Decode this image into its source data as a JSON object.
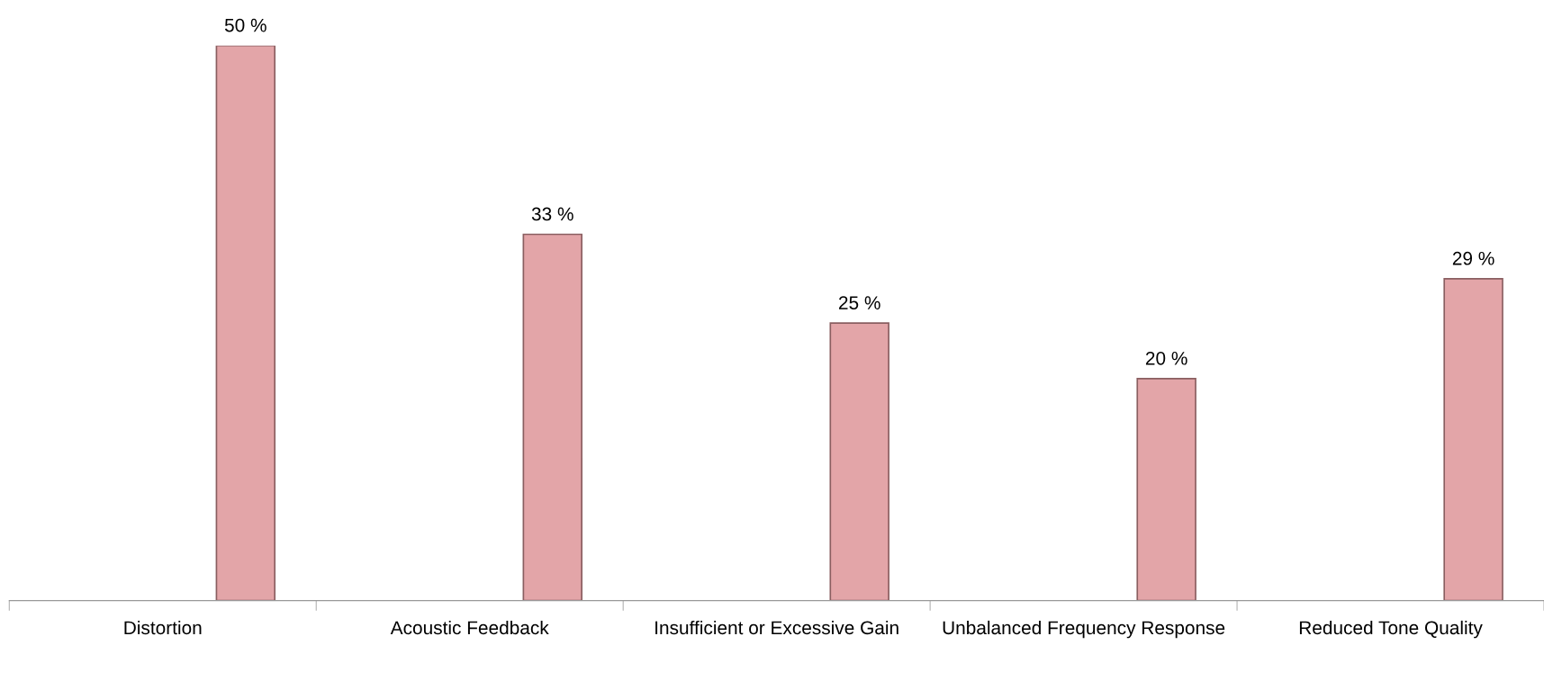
{
  "chart_data": {
    "type": "bar",
    "categories": [
      "Distortion",
      "Acoustic Feedback",
      "Insufficient or Excessive Gain",
      "Unbalanced Frequency Response",
      "Reduced Tone Quality"
    ],
    "values": [
      50,
      33,
      25,
      20,
      29
    ],
    "value_labels": [
      "50 %",
      "33 %",
      "25 %",
      "20 %",
      "29 %"
    ],
    "color": "#e3a5a8",
    "grid": false,
    "legend": false
  }
}
